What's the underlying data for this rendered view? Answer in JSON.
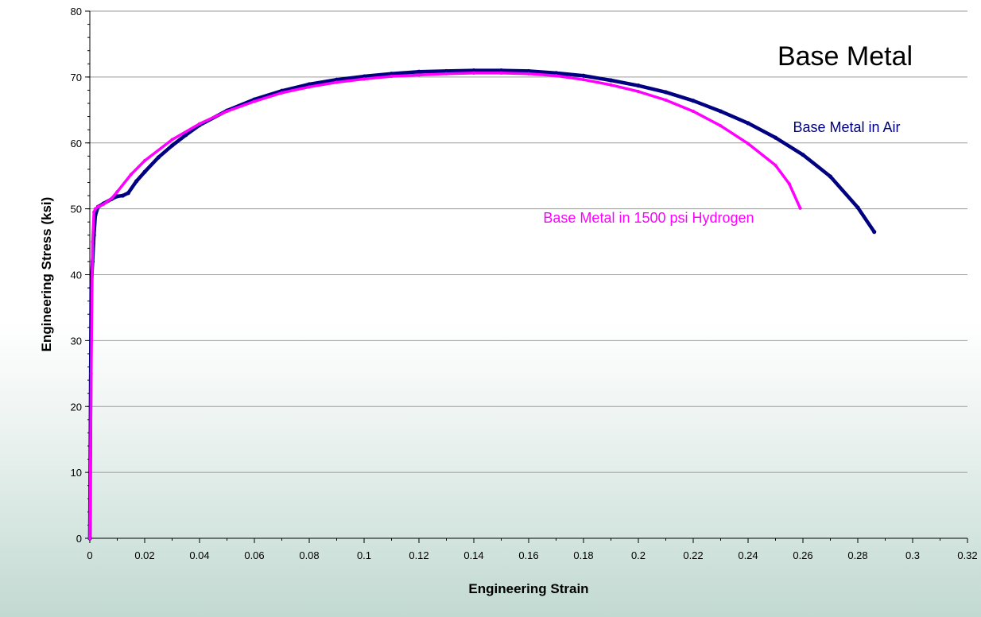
{
  "chart_data": {
    "type": "line",
    "title": "Base Metal",
    "xlabel": "Engineering Strain",
    "ylabel": "Engineering Stress (ksi)",
    "xlim": [
      0,
      0.32
    ],
    "ylim": [
      0,
      80
    ],
    "x_ticks": [
      "0",
      "0.02",
      "0.04",
      "0.06",
      "0.08",
      "0.1",
      "0.12",
      "0.14",
      "0.16",
      "0.18",
      "0.2",
      "0.22",
      "0.24",
      "0.26",
      "0.28",
      "0.3",
      "0.32"
    ],
    "y_ticks": [
      "0",
      "10",
      "20",
      "30",
      "40",
      "50",
      "60",
      "70",
      "80"
    ],
    "grid": "horizontal",
    "legend": "none (direct labels)",
    "series": [
      {
        "name": "Base Metal in Air",
        "color": "#000080",
        "label_position": "right",
        "x": [
          0,
          0.0005,
          0.001,
          0.0015,
          0.002,
          0.003,
          0.005,
          0.008,
          0.01,
          0.012,
          0.014,
          0.017,
          0.02,
          0.025,
          0.03,
          0.035,
          0.04,
          0.05,
          0.06,
          0.07,
          0.08,
          0.09,
          0.1,
          0.11,
          0.12,
          0.13,
          0.14,
          0.15,
          0.16,
          0.17,
          0.18,
          0.19,
          0.2,
          0.21,
          0.22,
          0.23,
          0.24,
          0.25,
          0.26,
          0.27,
          0.28,
          0.286
        ],
        "values": [
          0,
          38,
          42,
          46,
          49,
          50.3,
          50.8,
          51.5,
          51.9,
          52.0,
          52.4,
          54.2,
          55.6,
          57.8,
          59.6,
          61.2,
          62.7,
          64.9,
          66.6,
          67.9,
          68.9,
          69.6,
          70.1,
          70.5,
          70.8,
          70.9,
          71.0,
          71.0,
          70.9,
          70.6,
          70.2,
          69.5,
          68.7,
          67.7,
          66.4,
          64.8,
          63.0,
          60.8,
          58.2,
          54.9,
          50.2,
          46.5
        ]
      },
      {
        "name": "Base Metal in 1500 psi Hydrogen",
        "color": "#FF00FF",
        "label_position": "lower-right",
        "x": [
          0,
          0.0005,
          0.001,
          0.0015,
          0.002,
          0.003,
          0.005,
          0.008,
          0.01,
          0.015,
          0.02,
          0.03,
          0.04,
          0.05,
          0.06,
          0.07,
          0.08,
          0.09,
          0.1,
          0.11,
          0.12,
          0.13,
          0.14,
          0.15,
          0.16,
          0.17,
          0.18,
          0.19,
          0.2,
          0.21,
          0.22,
          0.23,
          0.24,
          0.25,
          0.255,
          0.259
        ],
        "values": [
          0,
          25,
          45,
          49.5,
          50.0,
          50.3,
          50.7,
          51.6,
          52.6,
          55.2,
          57.3,
          60.5,
          62.9,
          64.8,
          66.3,
          67.6,
          68.5,
          69.2,
          69.7,
          70.1,
          70.3,
          70.5,
          70.6,
          70.6,
          70.5,
          70.2,
          69.6,
          68.8,
          67.8,
          66.5,
          64.8,
          62.6,
          59.9,
          56.6,
          53.8,
          50.1
        ]
      }
    ]
  }
}
